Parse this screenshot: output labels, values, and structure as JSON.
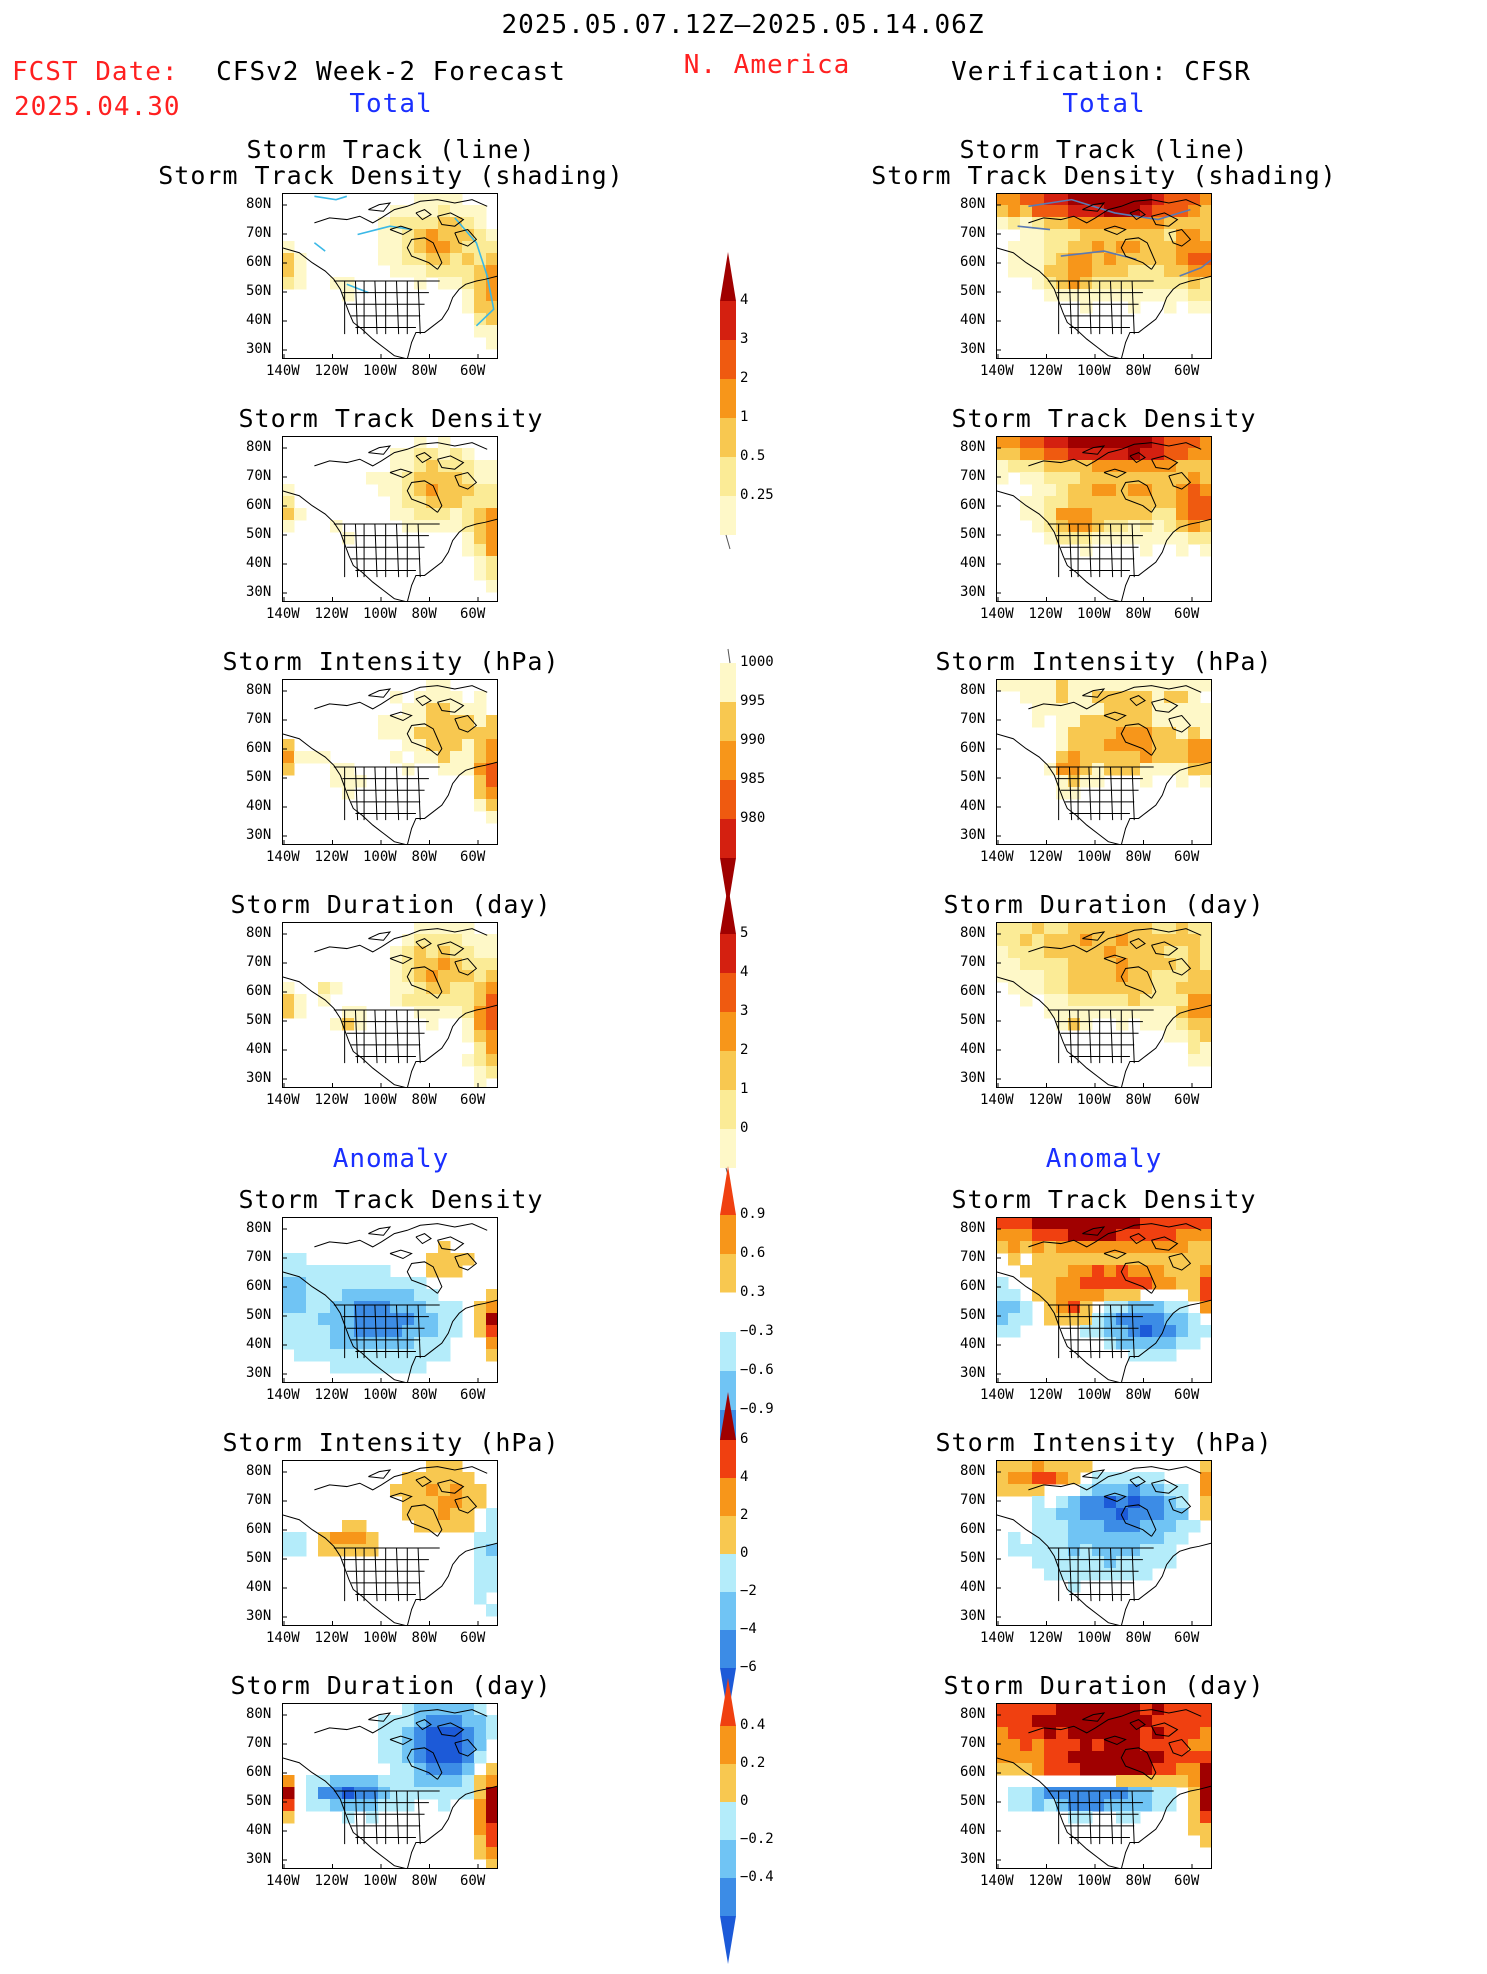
{
  "header": {
    "date_range": "2025.05.07.12Z–2025.05.14.06Z",
    "fcst_label": "FCST Date:",
    "fcst_date": "2025.04.30",
    "forecast_title": "CFSv2 Week-2 Forecast",
    "region": "N. America",
    "verification_title": "Verification: CFSR",
    "total_label": "Total",
    "anomaly_label": "Anomaly"
  },
  "axes": {
    "lat_labels": [
      "80N",
      "70N",
      "60N",
      "50N",
      "40N",
      "30N"
    ],
    "lon_labels": [
      "140W",
      "120W",
      "100W",
      "80W",
      "60W"
    ]
  },
  "panels": [
    {
      "id": "fcst-track-total",
      "title": "Storm Track (line)\nStorm Track Density (shading)",
      "scheme": "density",
      "pattern": "fcst-track"
    },
    {
      "id": "fcst-density-total",
      "title": "Storm Track Density",
      "scheme": "density",
      "pattern": "fcst-density"
    },
    {
      "id": "fcst-intensity-total",
      "title": "Storm Intensity (hPa)",
      "scheme": "pressure",
      "pattern": "fcst-intensity"
    },
    {
      "id": "fcst-duration-total",
      "title": "Storm Duration (day)",
      "scheme": "duration",
      "pattern": "fcst-duration"
    },
    {
      "id": "fcst-density-anom",
      "title": "Storm Track Density",
      "scheme": "anom",
      "pattern": "fcst-density-anom"
    },
    {
      "id": "fcst-intensity-anom",
      "title": "Storm Intensity (hPa)",
      "scheme": "anom",
      "pattern": "fcst-intensity-anom"
    },
    {
      "id": "fcst-duration-anom",
      "title": "Storm Duration (day)",
      "scheme": "anom",
      "pattern": "fcst-duration-anom"
    },
    {
      "id": "verif-track-total",
      "title": "Storm Track (line)\nStorm Track Density (shading)",
      "scheme": "density",
      "pattern": "verif-track"
    },
    {
      "id": "verif-density-total",
      "title": "Storm Track Density",
      "scheme": "density",
      "pattern": "verif-density"
    },
    {
      "id": "verif-intensity-total",
      "title": "Storm Intensity (hPa)",
      "scheme": "pressure",
      "pattern": "verif-intensity"
    },
    {
      "id": "verif-duration-total",
      "title": "Storm Duration (day)",
      "scheme": "duration",
      "pattern": "verif-duration"
    },
    {
      "id": "verif-density-anom",
      "title": "Storm Track Density",
      "scheme": "anom",
      "pattern": "verif-density-anom"
    },
    {
      "id": "verif-intensity-anom",
      "title": "Storm Intensity (hPa)",
      "scheme": "anom",
      "pattern": "verif-intensity-anom"
    },
    {
      "id": "verif-duration-anom",
      "title": "Storm Duration (day)",
      "scheme": "anom",
      "pattern": "verif-duration-anom"
    }
  ],
  "colorbars": [
    {
      "id": "density",
      "ticks": [
        "4",
        "3",
        "2",
        "1",
        "0.5",
        "0.25"
      ],
      "colors": [
        "#a00000",
        "#d42010",
        "#ef5a10",
        "#f7961a",
        "#f8c850",
        "#fbeb96",
        "#fef8c8"
      ],
      "arrow_top": true,
      "arrow_bottom": false
    },
    {
      "id": "pressure",
      "ticks": [
        "1000",
        "995",
        "990",
        "985",
        "980"
      ],
      "colors": [
        "#fef8c8",
        "#f8c850",
        "#f7961a",
        "#ef5a10",
        "#d42010",
        "#a00000"
      ],
      "arrow_top": false,
      "arrow_bottom": true
    },
    {
      "id": "duration",
      "ticks": [
        "5",
        "4",
        "3",
        "2",
        "1",
        "0"
      ],
      "colors": [
        "#a00000",
        "#d42010",
        "#ef5a10",
        "#f7961a",
        "#f8c850",
        "#fbeb96",
        "#fef8c8"
      ],
      "arrow_top": true,
      "arrow_bottom": false
    },
    {
      "id": "anom-density",
      "ticks": [
        "0.9",
        "0.6",
        "0.3",
        "−0.3",
        "−0.6",
        "−0.9"
      ],
      "colors": [
        "#f04010",
        "#f7961a",
        "#f8c850",
        "#ffffff",
        "#b4ecfa",
        "#70c4f4",
        "#3c8ce6",
        "#1c5ad8"
      ],
      "arrow_top": true,
      "arrow_bottom": true
    },
    {
      "id": "anom-intensity",
      "ticks": [
        "6",
        "4",
        "2",
        "0",
        "−2",
        "−4",
        "−6"
      ],
      "colors": [
        "#a00000",
        "#f04010",
        "#f7961a",
        "#f8c850",
        "#b4ecfa",
        "#70c4f4",
        "#3c8ce6",
        "#1c5ad8"
      ],
      "arrow_top": true,
      "arrow_bottom": true
    },
    {
      "id": "anom-duration",
      "ticks": [
        "0.4",
        "0.2",
        "0",
        "−0.2",
        "−0.4"
      ],
      "colors": [
        "#f04010",
        "#f7961a",
        "#f8c850",
        "#b4ecfa",
        "#70c4f4",
        "#3c8ce6",
        "#1c5ad8"
      ],
      "arrow_top": true,
      "arrow_bottom": true
    }
  ]
}
